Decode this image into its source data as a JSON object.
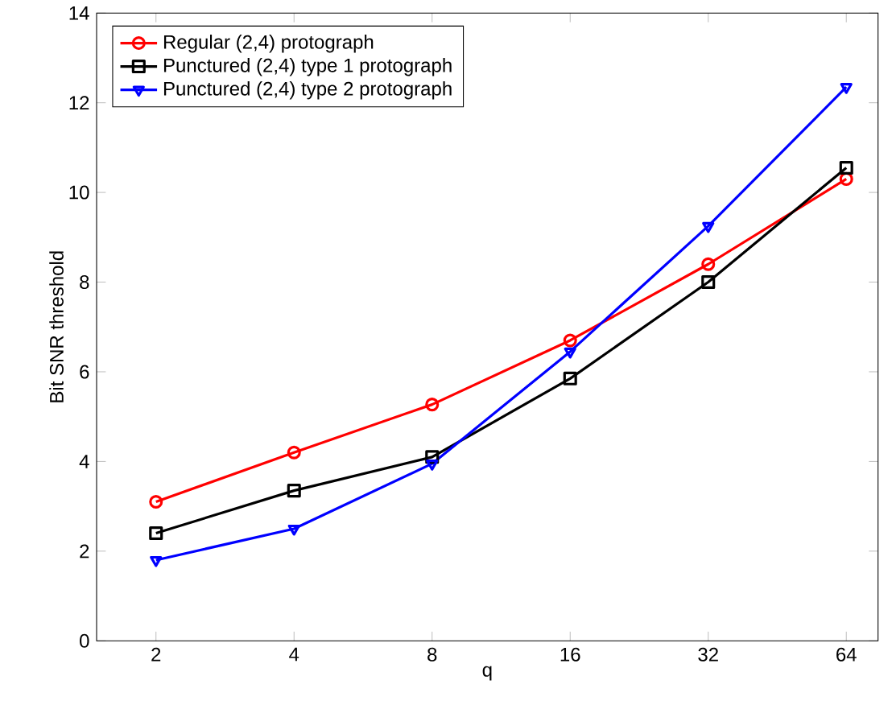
{
  "chart_data": {
    "type": "line",
    "xlabel": "q",
    "ylabel": "Bit SNR threshold",
    "categories": [
      "2",
      "4",
      "8",
      "16",
      "32",
      "64"
    ],
    "ylim": [
      0,
      14
    ],
    "yticks": [
      0,
      2,
      4,
      6,
      8,
      10,
      12,
      14
    ],
    "legend": "top left",
    "grid": false,
    "series": [
      {
        "name": "Regular (2,4) protograph",
        "color": "#ff0000",
        "marker": "circle",
        "values": [
          3.1,
          4.2,
          5.27,
          6.7,
          8.4,
          10.3
        ]
      },
      {
        "name": "Punctured (2,4) type 1 protograph",
        "color": "#000000",
        "marker": "square",
        "values": [
          2.4,
          3.35,
          4.1,
          5.85,
          8.0,
          10.55
        ]
      },
      {
        "name": "Punctured (2,4) type 2 protograph",
        "color": "#0000ff",
        "marker": "triangle",
        "values": [
          1.8,
          2.5,
          3.95,
          6.45,
          9.25,
          12.35
        ]
      }
    ]
  }
}
